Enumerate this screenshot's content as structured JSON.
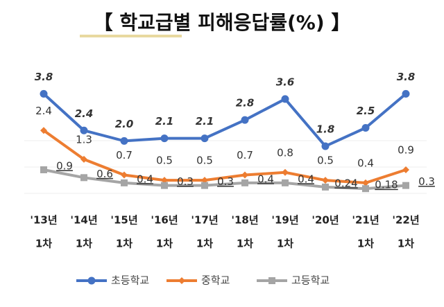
{
  "chart_data": {
    "type": "line",
    "title": "【 학교급별 피해응답률(%) 】",
    "categories": [
      [
        "'13년",
        "1차"
      ],
      [
        "'14년",
        "1차"
      ],
      [
        "'15년",
        "1차"
      ],
      [
        "'16년",
        "1차"
      ],
      [
        "'17년",
        "1차"
      ],
      [
        "'18년",
        "1차"
      ],
      [
        "'19년",
        "1차"
      ],
      [
        "'20년"
      ],
      [
        "'21년",
        "1차"
      ],
      [
        "'22년",
        "1차"
      ]
    ],
    "series": [
      {
        "name": "초등학교",
        "color": "#4472c4",
        "marker": "circle",
        "values": [
          3.8,
          2.4,
          2.0,
          2.1,
          2.1,
          2.8,
          3.6,
          1.8,
          2.5,
          3.8
        ],
        "value_labels": [
          "3.8",
          "2.4",
          "2.0",
          "2.1",
          "2.1",
          "2.8",
          "3.6",
          "1.8",
          "2.5",
          "3.8"
        ]
      },
      {
        "name": "중학교",
        "color": "#ed7d31",
        "marker": "diamond",
        "values": [
          2.4,
          1.3,
          0.7,
          0.5,
          0.5,
          0.7,
          0.8,
          0.5,
          0.4,
          0.9
        ],
        "value_labels": [
          "2.4",
          "1.3",
          "0.7",
          "0.5",
          "0.5",
          "0.7",
          "0.8",
          "0.5",
          "0.4",
          "0.9"
        ]
      },
      {
        "name": "고등학교",
        "color": "#a5a5a5",
        "marker": "square",
        "values": [
          0.9,
          0.6,
          0.4,
          0.3,
          0.3,
          0.4,
          0.4,
          0.24,
          0.18,
          0.3
        ],
        "value_labels": [
          "0.9",
          "0.6",
          "0.4",
          "0.3",
          "0.3",
          "0.4",
          "0.4",
          "0.24",
          "0.18",
          "0.3"
        ]
      }
    ]
  }
}
